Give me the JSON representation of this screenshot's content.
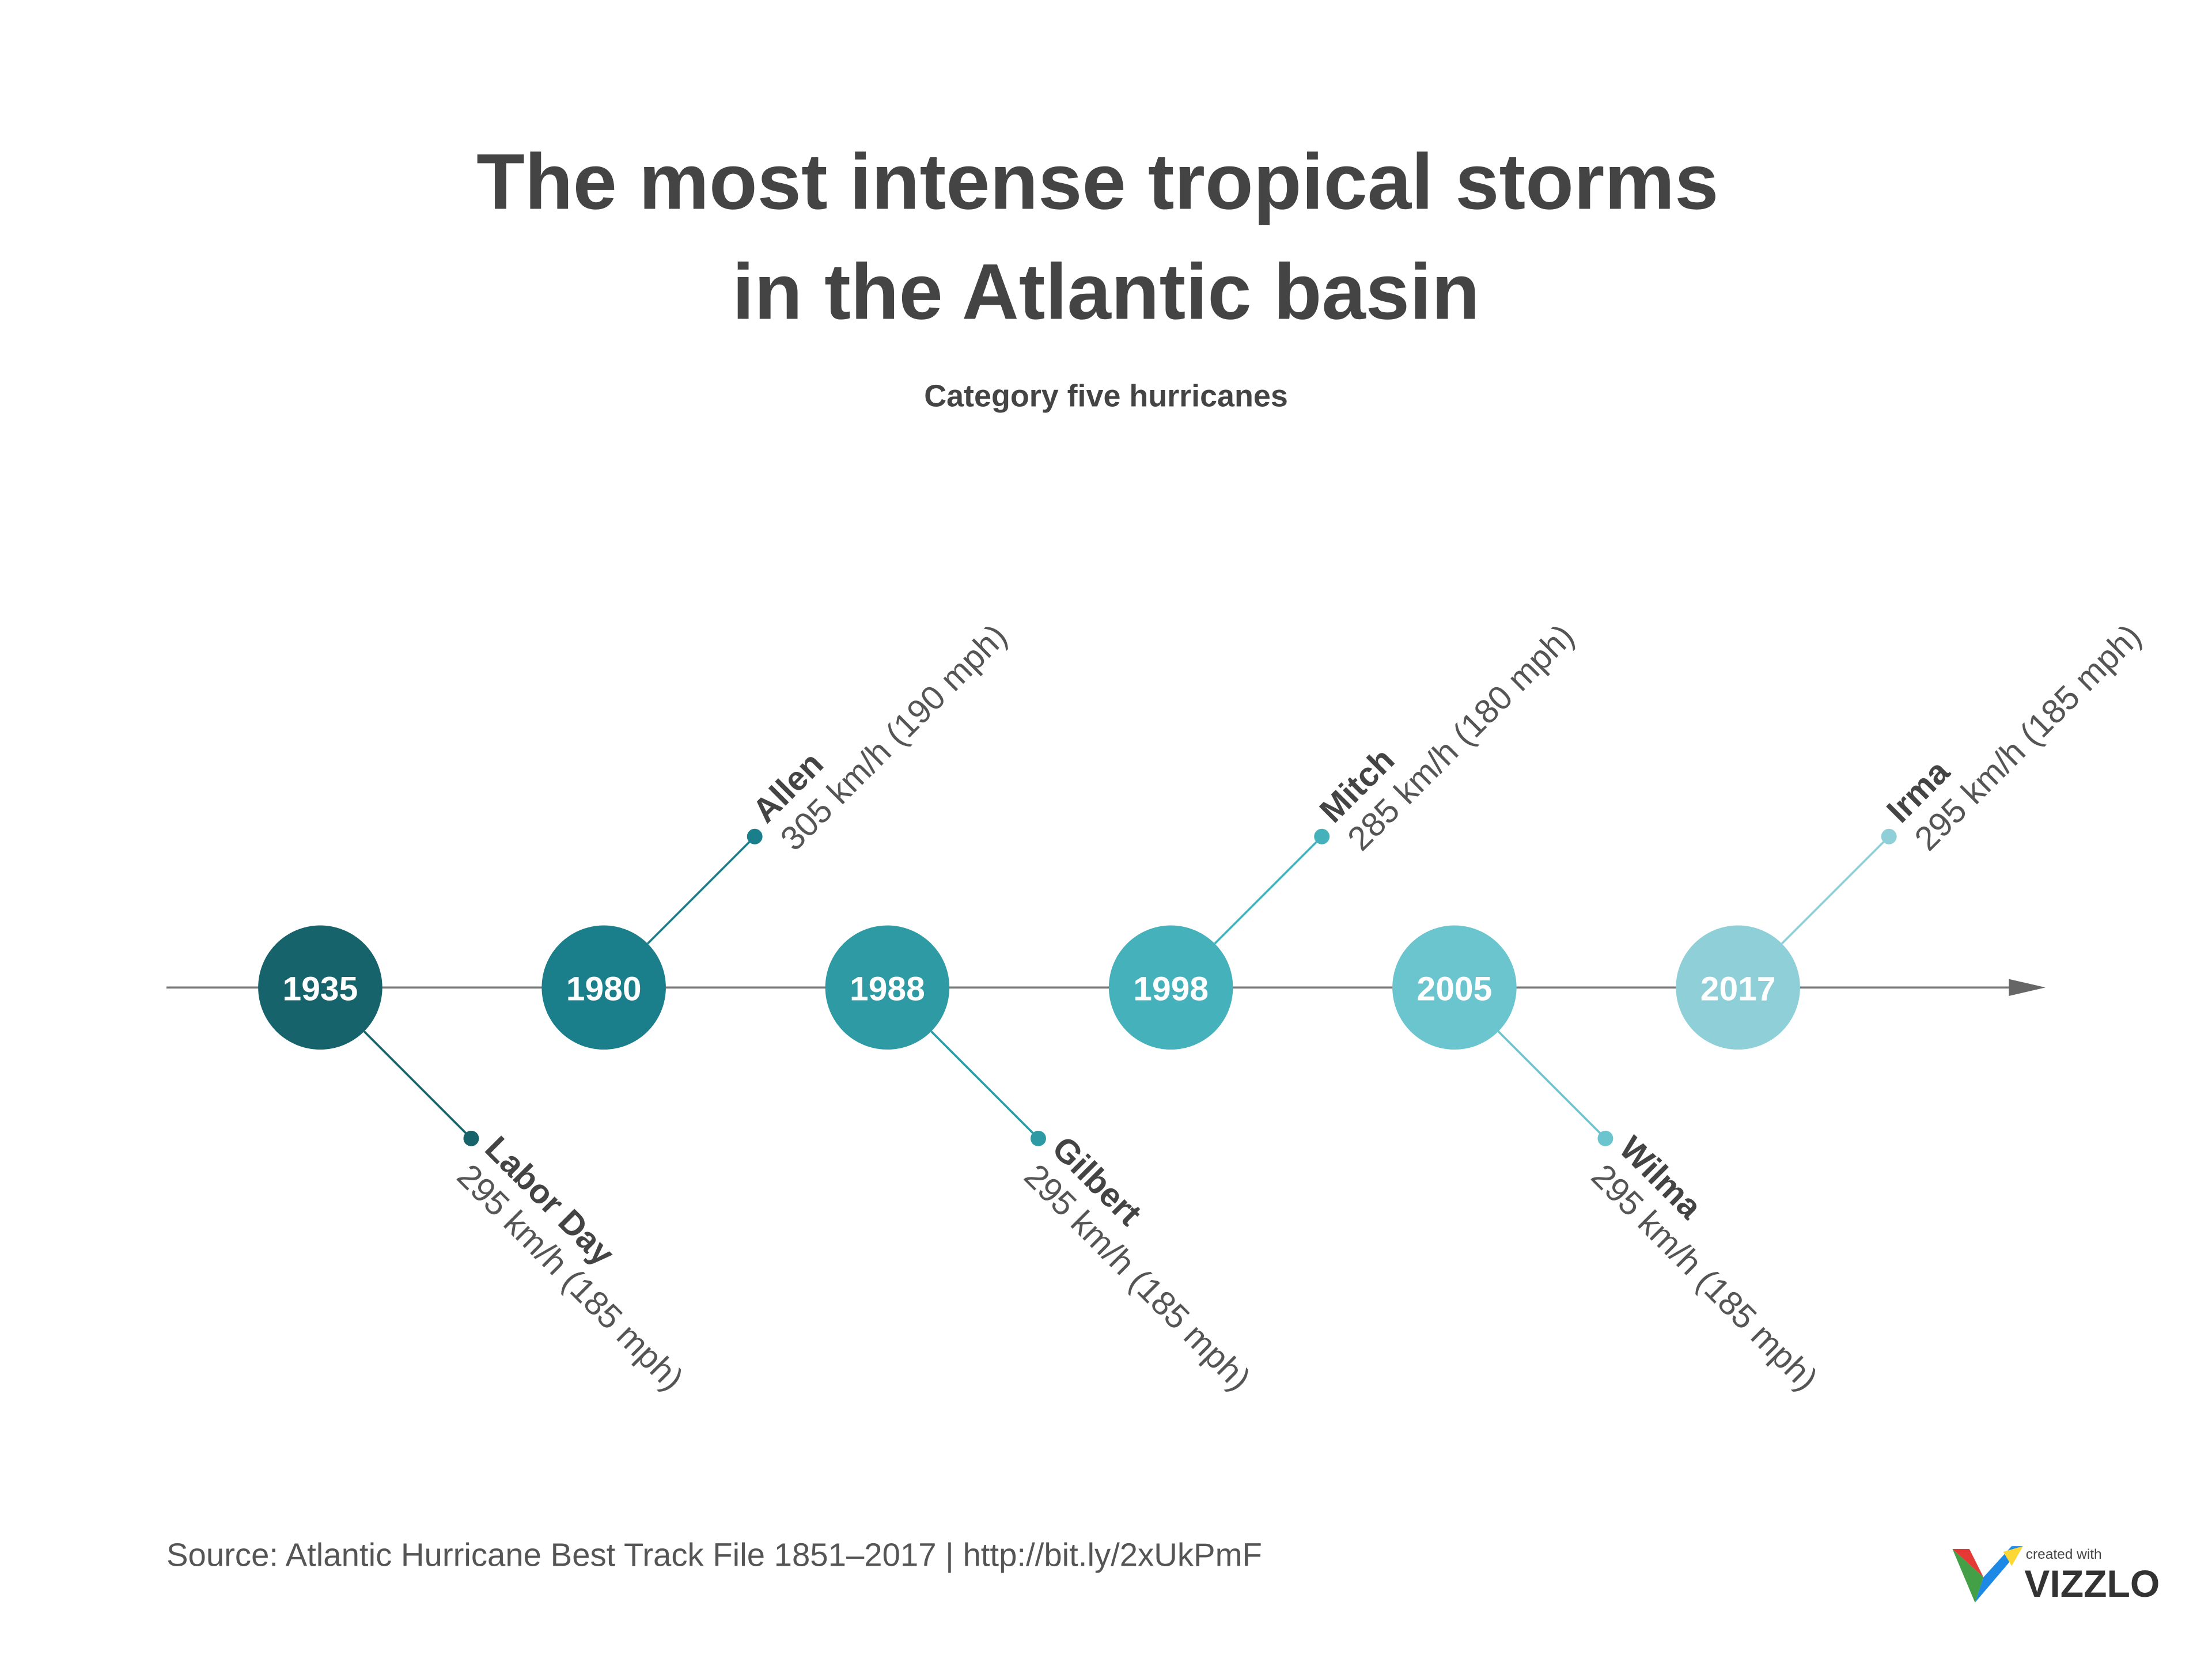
{
  "title": [
    "The most intense tropical storms",
    "in the Atlantic basin"
  ],
  "subtitle": "Category five hurricanes",
  "events": [
    {
      "year": "1935",
      "name": "Labor Day",
      "speed": "295 km/h (185 mph)",
      "side": "below",
      "color": "#16636b"
    },
    {
      "year": "1980",
      "name": "Allen",
      "speed": "305 km/h (190 mph)",
      "side": "above",
      "color": "#1a7f8a"
    },
    {
      "year": "1988",
      "name": "Gilbert",
      "speed": "295 km/h (185 mph)",
      "side": "below",
      "color": "#2e9aa3"
    },
    {
      "year": "1998",
      "name": "Mitch",
      "speed": "285 km/h (180 mph)",
      "side": "above",
      "color": "#45b1bb"
    },
    {
      "year": "2005",
      "name": "Wilma",
      "speed": "295 km/h (185 mph)",
      "side": "below",
      "color": "#6ac5cf"
    },
    {
      "year": "2017",
      "name": "Irma",
      "speed": "295 km/h (185 mph)",
      "side": "above",
      "color": "#8fd0d8"
    }
  ],
  "source": "Source: Atlantic Hurricane Best Track File 1851–2017 | http://bit.ly/2xUkPmF",
  "logo": {
    "tagline": "created with",
    "brand": "VIZZLO"
  }
}
